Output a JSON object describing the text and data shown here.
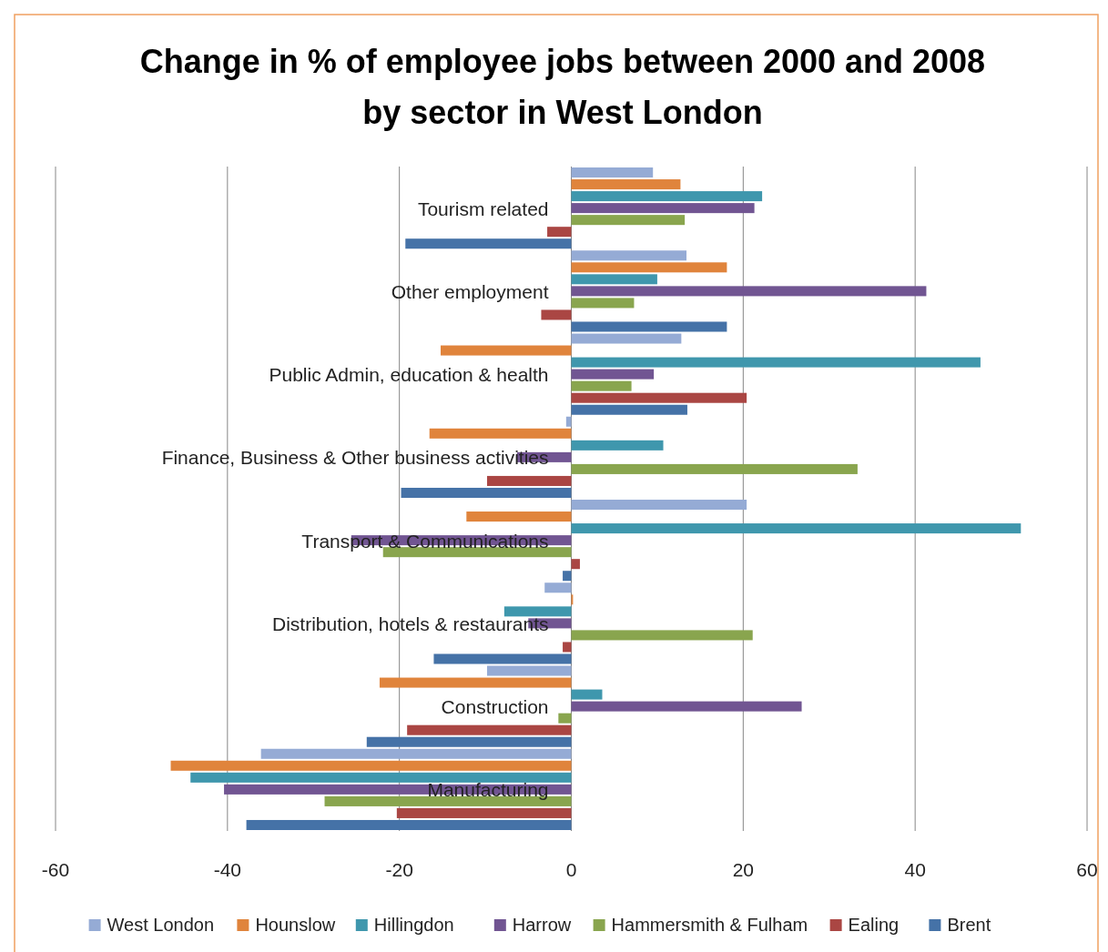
{
  "chart_data": {
    "type": "bar",
    "orientation": "horizontal",
    "title": "Change in % of employee jobs between 2000 and 2008 by sector in West London",
    "categories": [
      "Tourism related",
      "Other employment",
      "Public Admin, education & health",
      "Finance, Business & Other business activities",
      "Transport & Communications",
      "Distribution, hotels & restaurants",
      "Construction",
      "Manufacturing"
    ],
    "series": [
      {
        "name": "West London",
        "color": "#95abd5",
        "values": [
          9.5,
          13.4,
          12.8,
          -0.6,
          20.4,
          -3.1,
          -9.8,
          -36.1
        ]
      },
      {
        "name": "Hounslow",
        "color": "#e0843c",
        "values": [
          12.7,
          18.1,
          -15.2,
          -16.5,
          -12.2,
          0.2,
          -22.3,
          -46.6
        ]
      },
      {
        "name": "Hillingdon",
        "color": "#3f97ad",
        "values": [
          22.2,
          10.0,
          47.6,
          10.7,
          52.3,
          -7.8,
          3.6,
          -44.3
        ]
      },
      {
        "name": "Harrow",
        "color": "#715592",
        "values": [
          21.3,
          41.3,
          9.6,
          -6.3,
          -25.6,
          -5.0,
          26.8,
          -40.4
        ]
      },
      {
        "name": "Hammersmith & Fulham",
        "color": "#89a54e",
        "values": [
          13.2,
          7.3,
          7.0,
          33.3,
          -21.9,
          21.1,
          -1.5,
          -28.7
        ]
      },
      {
        "name": "Ealing",
        "color": "#aa4643",
        "values": [
          -2.8,
          -3.5,
          20.4,
          -9.8,
          1.0,
          -1.0,
          -19.1,
          -20.3
        ]
      },
      {
        "name": "Brent",
        "color": "#4572a7",
        "values": [
          -19.3,
          18.1,
          13.5,
          -19.8,
          -1.0,
          -16.0,
          -23.8,
          -37.8
        ]
      }
    ],
    "xlim": [
      -60,
      60
    ],
    "xticks": [
      -60,
      -40,
      -20,
      0,
      20,
      40,
      60
    ],
    "grid": "x",
    "legend": "bottom"
  }
}
